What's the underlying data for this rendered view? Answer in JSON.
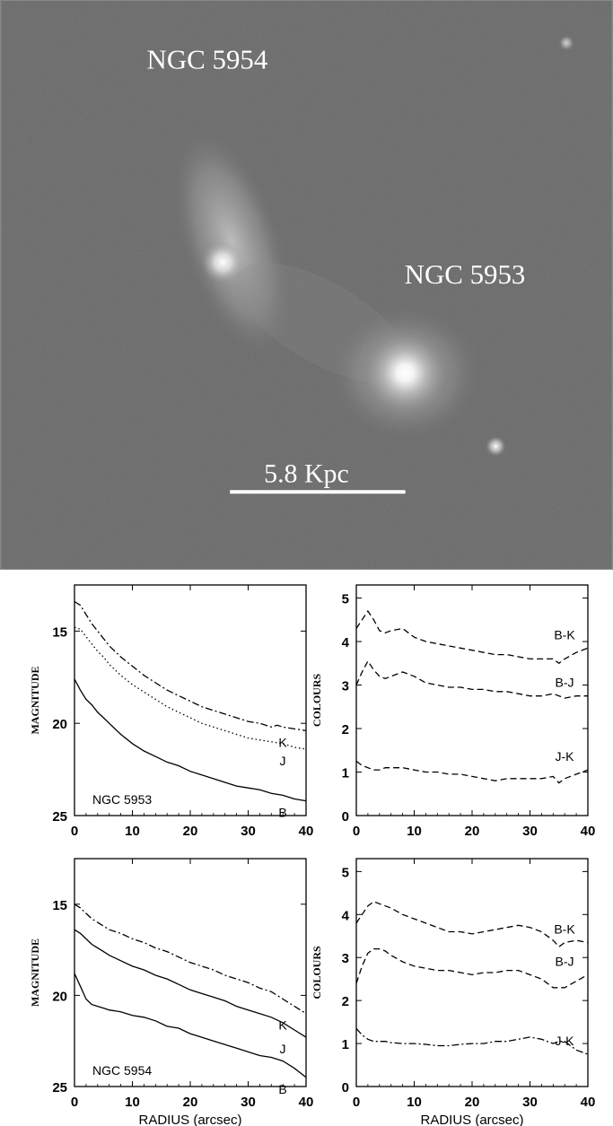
{
  "image": {
    "galaxy_labels": [
      "NGC 5954",
      "NGC 5953"
    ],
    "scale_bar_label": "5.8 Kpc"
  },
  "chart_data": [
    {
      "type": "line",
      "panel": "top-left",
      "ylabel": "MAGNITUDE",
      "xlabel": "",
      "annotation": "NGC 5953",
      "xlim": [
        0,
        40
      ],
      "ylim": [
        25,
        12.5
      ],
      "y_inverted": true,
      "xticks": [
        0,
        10,
        20,
        30,
        40
      ],
      "yticks": [
        15,
        20,
        25
      ],
      "series": [
        {
          "name": "K",
          "style": "dashdot",
          "x": [
            0,
            1,
            2,
            3,
            4,
            5,
            6,
            8,
            10,
            12,
            14,
            16,
            18,
            20,
            22,
            24,
            26,
            28,
            30,
            32,
            34,
            35,
            36,
            38,
            40
          ],
          "y": [
            13.4,
            13.6,
            14.1,
            14.6,
            15.0,
            15.4,
            15.8,
            16.4,
            16.9,
            17.4,
            17.8,
            18.2,
            18.5,
            18.8,
            19.1,
            19.3,
            19.5,
            19.7,
            19.9,
            20.0,
            20.2,
            20.1,
            20.2,
            20.3,
            20.4
          ]
        },
        {
          "name": "J",
          "style": "dotted",
          "x": [
            0,
            1,
            2,
            3,
            4,
            5,
            6,
            8,
            10,
            12,
            14,
            16,
            18,
            20,
            22,
            24,
            26,
            28,
            30,
            32,
            34,
            36,
            38,
            40
          ],
          "y": [
            14.8,
            14.9,
            15.3,
            15.7,
            16.1,
            16.4,
            16.8,
            17.4,
            17.9,
            18.3,
            18.7,
            19.1,
            19.4,
            19.7,
            20.0,
            20.2,
            20.4,
            20.6,
            20.8,
            20.9,
            21.0,
            21.1,
            21.3,
            21.4
          ]
        },
        {
          "name": "B",
          "style": "solid",
          "x": [
            0,
            1,
            2,
            3,
            4,
            5,
            6,
            8,
            10,
            12,
            14,
            16,
            18,
            20,
            22,
            24,
            26,
            28,
            30,
            32,
            34,
            36,
            38,
            40
          ],
          "y": [
            17.6,
            18.2,
            18.7,
            19.0,
            19.4,
            19.7,
            20.0,
            20.6,
            21.1,
            21.5,
            21.8,
            22.1,
            22.3,
            22.6,
            22.8,
            23.0,
            23.2,
            23.4,
            23.5,
            23.6,
            23.8,
            23.9,
            24.1,
            24.2
          ]
        }
      ]
    },
    {
      "type": "line",
      "panel": "top-right",
      "ylabel": "COLOURS",
      "xlabel": "",
      "xlim": [
        0,
        40
      ],
      "ylim": [
        0,
        5.3
      ],
      "xticks": [
        0,
        10,
        20,
        30,
        40
      ],
      "yticks": [
        0,
        1,
        2,
        3,
        4,
        5
      ],
      "series": [
        {
          "name": "B-K",
          "style": "dashed",
          "x": [
            0,
            1,
            2,
            3,
            4,
            5,
            6,
            8,
            10,
            12,
            14,
            16,
            18,
            20,
            22,
            24,
            26,
            28,
            30,
            32,
            34,
            35,
            36,
            38,
            40
          ],
          "y": [
            4.3,
            4.5,
            4.7,
            4.5,
            4.25,
            4.2,
            4.25,
            4.3,
            4.1,
            4.0,
            3.95,
            3.9,
            3.85,
            3.8,
            3.75,
            3.7,
            3.7,
            3.65,
            3.6,
            3.6,
            3.6,
            3.5,
            3.6,
            3.75,
            3.85
          ]
        },
        {
          "name": "B-J",
          "style": "dashed",
          "x": [
            0,
            1,
            2,
            3,
            4,
            5,
            6,
            8,
            10,
            12,
            14,
            16,
            18,
            20,
            22,
            24,
            26,
            28,
            30,
            32,
            34,
            36,
            38,
            40
          ],
          "y": [
            3.0,
            3.3,
            3.55,
            3.35,
            3.2,
            3.15,
            3.2,
            3.3,
            3.2,
            3.05,
            3.0,
            2.95,
            2.95,
            2.9,
            2.9,
            2.85,
            2.85,
            2.8,
            2.75,
            2.75,
            2.8,
            2.7,
            2.75,
            2.75
          ]
        },
        {
          "name": "J-K",
          "style": "dashed",
          "x": [
            0,
            1,
            2,
            3,
            4,
            5,
            6,
            8,
            10,
            12,
            14,
            16,
            18,
            20,
            22,
            24,
            26,
            28,
            30,
            32,
            34,
            35,
            36,
            38,
            40
          ],
          "y": [
            1.25,
            1.15,
            1.1,
            1.05,
            1.05,
            1.1,
            1.1,
            1.1,
            1.05,
            1.0,
            1.0,
            0.95,
            0.95,
            0.9,
            0.85,
            0.8,
            0.85,
            0.85,
            0.85,
            0.85,
            0.9,
            0.75,
            0.85,
            0.95,
            1.05
          ]
        }
      ]
    },
    {
      "type": "line",
      "panel": "bottom-left",
      "ylabel": "MAGNITUDE",
      "xlabel": "RADIUS (arcsec)",
      "annotation": "NGC 5954",
      "xlim": [
        0,
        40
      ],
      "ylim": [
        25,
        12.5
      ],
      "y_inverted": true,
      "xticks": [
        0,
        10,
        20,
        30,
        40
      ],
      "yticks": [
        15,
        20,
        25
      ],
      "series": [
        {
          "name": "K",
          "style": "dashdot",
          "x": [
            0,
            1,
            2,
            3,
            4,
            5,
            6,
            8,
            10,
            12,
            14,
            16,
            18,
            20,
            22,
            24,
            26,
            28,
            30,
            32,
            34,
            36,
            38,
            40
          ],
          "y": [
            15.0,
            15.2,
            15.5,
            15.8,
            16.0,
            16.2,
            16.4,
            16.6,
            16.9,
            17.1,
            17.4,
            17.6,
            17.9,
            18.2,
            18.4,
            18.6,
            18.9,
            19.1,
            19.3,
            19.6,
            19.8,
            20.2,
            20.6,
            21.0
          ]
        },
        {
          "name": "J",
          "style": "solid",
          "x": [
            0,
            1,
            2,
            3,
            4,
            5,
            6,
            8,
            10,
            12,
            14,
            16,
            18,
            20,
            22,
            24,
            26,
            28,
            30,
            32,
            34,
            36,
            38,
            40
          ],
          "y": [
            16.4,
            16.6,
            16.9,
            17.2,
            17.4,
            17.6,
            17.8,
            18.1,
            18.4,
            18.6,
            18.9,
            19.1,
            19.4,
            19.7,
            19.9,
            20.1,
            20.3,
            20.6,
            20.8,
            21.0,
            21.2,
            21.5,
            21.9,
            22.3
          ]
        },
        {
          "name": "B",
          "style": "solid",
          "x": [
            0,
            1,
            2,
            3,
            4,
            5,
            6,
            8,
            10,
            12,
            14,
            16,
            18,
            20,
            22,
            24,
            26,
            28,
            30,
            32,
            34,
            36,
            38,
            40
          ],
          "y": [
            18.8,
            19.5,
            20.2,
            20.5,
            20.6,
            20.7,
            20.8,
            20.9,
            21.1,
            21.2,
            21.4,
            21.7,
            21.8,
            22.1,
            22.3,
            22.5,
            22.7,
            22.9,
            23.1,
            23.3,
            23.4,
            23.6,
            24.0,
            24.5
          ]
        }
      ]
    },
    {
      "type": "line",
      "panel": "bottom-right",
      "ylabel": "COLOURS",
      "xlabel": "RADIUS (arcsec)",
      "xlim": [
        0,
        40
      ],
      "ylim": [
        0,
        5.3
      ],
      "xticks": [
        0,
        10,
        20,
        30,
        40
      ],
      "yticks": [
        0,
        1,
        2,
        3,
        4,
        5
      ],
      "series": [
        {
          "name": "B-K",
          "style": "dashed",
          "x": [
            0,
            1,
            2,
            3,
            4,
            5,
            6,
            8,
            10,
            12,
            14,
            16,
            18,
            20,
            22,
            24,
            26,
            28,
            30,
            32,
            34,
            35,
            36,
            38,
            40
          ],
          "y": [
            3.8,
            4.0,
            4.2,
            4.3,
            4.25,
            4.2,
            4.15,
            4.0,
            3.9,
            3.8,
            3.7,
            3.6,
            3.6,
            3.55,
            3.6,
            3.65,
            3.7,
            3.75,
            3.7,
            3.6,
            3.4,
            3.25,
            3.35,
            3.4,
            3.35
          ]
        },
        {
          "name": "B-J",
          "style": "dashed",
          "x": [
            0,
            1,
            2,
            3,
            4,
            5,
            6,
            8,
            10,
            12,
            14,
            16,
            18,
            20,
            22,
            24,
            26,
            28,
            30,
            32,
            34,
            36,
            38,
            40
          ],
          "y": [
            2.4,
            2.8,
            3.1,
            3.2,
            3.2,
            3.15,
            3.05,
            2.9,
            2.8,
            2.75,
            2.7,
            2.7,
            2.65,
            2.6,
            2.65,
            2.65,
            2.7,
            2.7,
            2.6,
            2.5,
            2.3,
            2.3,
            2.45,
            2.6
          ]
        },
        {
          "name": "J-K",
          "style": "dashdot",
          "x": [
            0,
            1,
            2,
            3,
            4,
            5,
            6,
            8,
            10,
            12,
            14,
            16,
            18,
            20,
            22,
            24,
            26,
            28,
            30,
            32,
            34,
            35,
            36,
            37,
            38,
            40
          ],
          "y": [
            1.35,
            1.2,
            1.1,
            1.05,
            1.05,
            1.05,
            1.02,
            1.0,
            1.0,
            0.98,
            0.95,
            0.95,
            0.98,
            1.0,
            1.0,
            1.05,
            1.05,
            1.1,
            1.15,
            1.1,
            1.0,
            1.05,
            1.05,
            0.95,
            0.85,
            0.75
          ]
        }
      ]
    }
  ]
}
